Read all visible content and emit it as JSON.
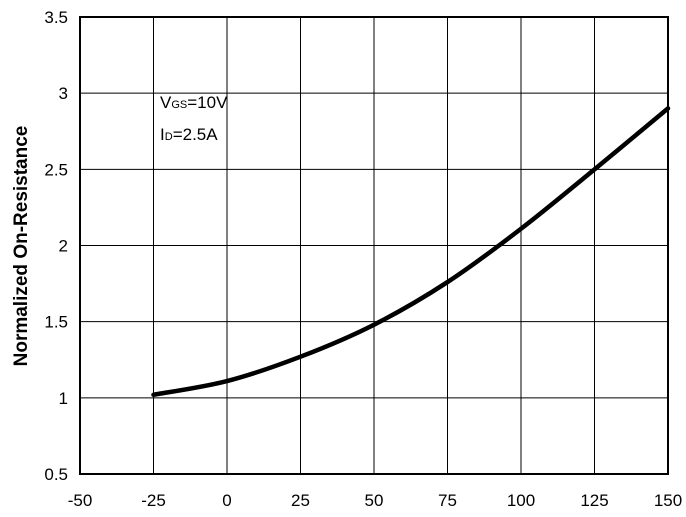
{
  "chart_data": {
    "type": "line",
    "xlabel": "",
    "ylabel": "Normalized On-Resistance",
    "xlim": [
      -50,
      150
    ],
    "ylim": [
      0.5,
      3.5
    ],
    "x_ticks": [
      -50,
      -25,
      0,
      25,
      50,
      75,
      100,
      125,
      150
    ],
    "y_ticks": [
      0.5,
      1,
      1.5,
      2,
      2.5,
      3,
      3.5
    ],
    "x_tick_labels": [
      "-50",
      "-25",
      "0",
      "25",
      "50",
      "75",
      "100",
      "125",
      "150"
    ],
    "y_tick_labels": [
      "0.5",
      "1",
      "1.5",
      "2",
      "2.5",
      "3",
      "3.5"
    ],
    "grid": true,
    "series": [
      {
        "color": "#000000",
        "x": [
          -25,
          0,
          25,
          50,
          75,
          100,
          125,
          150
        ],
        "y": [
          1.02,
          1.11,
          1.27,
          1.48,
          1.76,
          2.11,
          2.5,
          2.9
        ]
      }
    ],
    "annotations": [
      {
        "main": "V",
        "sub": "GS",
        "rest": "=10V"
      },
      {
        "main": "I",
        "sub": "D",
        "rest": "=2.5A"
      }
    ]
  }
}
